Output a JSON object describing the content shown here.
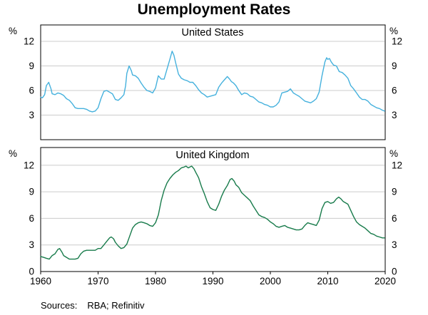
{
  "title": "Unemployment Rates",
  "footer": {
    "sources_label": "Sources:",
    "sources_text": "RBA; Refinitiv"
  },
  "chart_data": [
    {
      "type": "line",
      "panel_title": "United States",
      "unit": "%",
      "color": "#45b1dd",
      "grid": true,
      "x_range": [
        1960,
        2020
      ],
      "y_range": [
        0,
        14
      ],
      "y_ticks": [
        3,
        6,
        9,
        12
      ],
      "x_ticks": [
        1960,
        1970,
        1980,
        1990,
        2000,
        2010,
        2020
      ],
      "x_labels_visible": false,
      "series": [
        {
          "name": "United States unemployment rate (%)",
          "points": [
            [
              1960.0,
              5.2
            ],
            [
              1960.3,
              5.1
            ],
            [
              1960.7,
              5.5
            ],
            [
              1961.0,
              6.6
            ],
            [
              1961.4,
              7.0
            ],
            [
              1961.8,
              6.2
            ],
            [
              1962.0,
              5.6
            ],
            [
              1962.5,
              5.5
            ],
            [
              1963.0,
              5.7
            ],
            [
              1963.5,
              5.6
            ],
            [
              1964.0,
              5.4
            ],
            [
              1964.5,
              5.0
            ],
            [
              1965.0,
              4.8
            ],
            [
              1965.5,
              4.4
            ],
            [
              1966.0,
              3.9
            ],
            [
              1966.5,
              3.8
            ],
            [
              1967.0,
              3.8
            ],
            [
              1967.5,
              3.8
            ],
            [
              1968.0,
              3.7
            ],
            [
              1968.5,
              3.5
            ],
            [
              1969.0,
              3.4
            ],
            [
              1969.5,
              3.5
            ],
            [
              1970.0,
              3.9
            ],
            [
              1970.5,
              5.0
            ],
            [
              1971.0,
              5.9
            ],
            [
              1971.5,
              6.0
            ],
            [
              1972.0,
              5.8
            ],
            [
              1972.5,
              5.6
            ],
            [
              1973.0,
              4.9
            ],
            [
              1973.5,
              4.8
            ],
            [
              1974.0,
              5.1
            ],
            [
              1974.5,
              5.5
            ],
            [
              1974.8,
              6.6
            ],
            [
              1975.0,
              8.1
            ],
            [
              1975.4,
              9.0
            ],
            [
              1975.8,
              8.4
            ],
            [
              1976.0,
              7.9
            ],
            [
              1976.5,
              7.8
            ],
            [
              1977.0,
              7.5
            ],
            [
              1977.5,
              6.9
            ],
            [
              1978.0,
              6.4
            ],
            [
              1978.5,
              6.0
            ],
            [
              1979.0,
              5.9
            ],
            [
              1979.5,
              5.7
            ],
            [
              1980.0,
              6.3
            ],
            [
              1980.5,
              7.8
            ],
            [
              1981.0,
              7.4
            ],
            [
              1981.5,
              7.4
            ],
            [
              1982.0,
              8.6
            ],
            [
              1982.5,
              9.8
            ],
            [
              1982.9,
              10.8
            ],
            [
              1983.2,
              10.3
            ],
            [
              1983.5,
              9.4
            ],
            [
              1984.0,
              8.0
            ],
            [
              1984.5,
              7.5
            ],
            [
              1985.0,
              7.3
            ],
            [
              1985.5,
              7.2
            ],
            [
              1986.0,
              7.0
            ],
            [
              1986.5,
              7.0
            ],
            [
              1987.0,
              6.6
            ],
            [
              1987.5,
              6.1
            ],
            [
              1988.0,
              5.7
            ],
            [
              1988.5,
              5.5
            ],
            [
              1989.0,
              5.2
            ],
            [
              1989.5,
              5.3
            ],
            [
              1990.0,
              5.4
            ],
            [
              1990.5,
              5.5
            ],
            [
              1991.0,
              6.4
            ],
            [
              1991.5,
              6.9
            ],
            [
              1992.0,
              7.3
            ],
            [
              1992.5,
              7.7
            ],
            [
              1992.9,
              7.4
            ],
            [
              1993.2,
              7.1
            ],
            [
              1993.6,
              6.9
            ],
            [
              1994.0,
              6.6
            ],
            [
              1994.5,
              6.0
            ],
            [
              1995.0,
              5.5
            ],
            [
              1995.5,
              5.7
            ],
            [
              1996.0,
              5.6
            ],
            [
              1996.5,
              5.3
            ],
            [
              1997.0,
              5.2
            ],
            [
              1997.5,
              4.9
            ],
            [
              1998.0,
              4.6
            ],
            [
              1998.5,
              4.5
            ],
            [
              1999.0,
              4.3
            ],
            [
              1999.5,
              4.2
            ],
            [
              2000.0,
              4.0
            ],
            [
              2000.5,
              4.0
            ],
            [
              2001.0,
              4.2
            ],
            [
              2001.5,
              4.6
            ],
            [
              2002.0,
              5.7
            ],
            [
              2002.5,
              5.8
            ],
            [
              2003.0,
              5.9
            ],
            [
              2003.5,
              6.2
            ],
            [
              2004.0,
              5.7
            ],
            [
              2004.5,
              5.5
            ],
            [
              2005.0,
              5.3
            ],
            [
              2005.5,
              5.0
            ],
            [
              2006.0,
              4.7
            ],
            [
              2006.5,
              4.6
            ],
            [
              2007.0,
              4.5
            ],
            [
              2007.5,
              4.7
            ],
            [
              2008.0,
              5.0
            ],
            [
              2008.5,
              5.8
            ],
            [
              2009.0,
              7.8
            ],
            [
              2009.5,
              9.5
            ],
            [
              2009.8,
              10.0
            ],
            [
              2010.0,
              9.8
            ],
            [
              2010.3,
              9.9
            ],
            [
              2010.6,
              9.5
            ],
            [
              2011.0,
              9.1
            ],
            [
              2011.5,
              9.0
            ],
            [
              2012.0,
              8.3
            ],
            [
              2012.5,
              8.2
            ],
            [
              2013.0,
              7.9
            ],
            [
              2013.5,
              7.5
            ],
            [
              2014.0,
              6.6
            ],
            [
              2014.5,
              6.2
            ],
            [
              2015.0,
              5.7
            ],
            [
              2015.5,
              5.2
            ],
            [
              2016.0,
              4.9
            ],
            [
              2016.5,
              4.9
            ],
            [
              2017.0,
              4.7
            ],
            [
              2017.5,
              4.3
            ],
            [
              2018.0,
              4.1
            ],
            [
              2018.5,
              3.9
            ],
            [
              2019.0,
              3.8
            ],
            [
              2019.5,
              3.6
            ],
            [
              2019.9,
              3.5
            ]
          ]
        }
      ]
    },
    {
      "type": "line",
      "panel_title": "United Kingdom",
      "unit": "%",
      "color": "#187b4b",
      "grid": true,
      "x_range": [
        1960,
        2020
      ],
      "y_range": [
        0,
        14
      ],
      "y_ticks": [
        0,
        3,
        6,
        9,
        12
      ],
      "x_ticks": [
        1960,
        1970,
        1980,
        1990,
        2000,
        2010,
        2020
      ],
      "x_labels_visible": true,
      "series": [
        {
          "name": "United Kingdom unemployment rate (%)",
          "points": [
            [
              1960.0,
              1.7
            ],
            [
              1960.5,
              1.6
            ],
            [
              1961.0,
              1.5
            ],
            [
              1961.5,
              1.4
            ],
            [
              1962.0,
              1.8
            ],
            [
              1962.5,
              2.0
            ],
            [
              1963.0,
              2.5
            ],
            [
              1963.3,
              2.6
            ],
            [
              1963.7,
              2.2
            ],
            [
              1964.0,
              1.8
            ],
            [
              1964.5,
              1.6
            ],
            [
              1965.0,
              1.4
            ],
            [
              1965.5,
              1.4
            ],
            [
              1966.0,
              1.4
            ],
            [
              1966.5,
              1.5
            ],
            [
              1967.0,
              2.0
            ],
            [
              1967.5,
              2.3
            ],
            [
              1968.0,
              2.4
            ],
            [
              1968.5,
              2.4
            ],
            [
              1969.0,
              2.4
            ],
            [
              1969.5,
              2.4
            ],
            [
              1970.0,
              2.6
            ],
            [
              1970.5,
              2.6
            ],
            [
              1971.0,
              3.0
            ],
            [
              1971.5,
              3.4
            ],
            [
              1972.0,
              3.8
            ],
            [
              1972.3,
              3.9
            ],
            [
              1972.7,
              3.7
            ],
            [
              1973.0,
              3.3
            ],
            [
              1973.5,
              2.9
            ],
            [
              1974.0,
              2.6
            ],
            [
              1974.5,
              2.7
            ],
            [
              1975.0,
              3.1
            ],
            [
              1975.5,
              4.0
            ],
            [
              1976.0,
              4.9
            ],
            [
              1976.5,
              5.3
            ],
            [
              1977.0,
              5.5
            ],
            [
              1977.5,
              5.6
            ],
            [
              1978.0,
              5.5
            ],
            [
              1978.5,
              5.4
            ],
            [
              1979.0,
              5.2
            ],
            [
              1979.5,
              5.1
            ],
            [
              1980.0,
              5.5
            ],
            [
              1980.5,
              6.4
            ],
            [
              1981.0,
              8.0
            ],
            [
              1981.5,
              9.2
            ],
            [
              1982.0,
              10.0
            ],
            [
              1982.5,
              10.5
            ],
            [
              1983.0,
              10.9
            ],
            [
              1983.5,
              11.2
            ],
            [
              1984.0,
              11.4
            ],
            [
              1984.5,
              11.7
            ],
            [
              1985.0,
              11.8
            ],
            [
              1985.3,
              11.9
            ],
            [
              1985.7,
              11.7
            ],
            [
              1986.0,
              11.8
            ],
            [
              1986.3,
              11.9
            ],
            [
              1986.7,
              11.6
            ],
            [
              1987.0,
              11.2
            ],
            [
              1987.5,
              10.6
            ],
            [
              1988.0,
              9.6
            ],
            [
              1988.5,
              8.8
            ],
            [
              1989.0,
              7.9
            ],
            [
              1989.5,
              7.2
            ],
            [
              1990.0,
              7.0
            ],
            [
              1990.5,
              6.9
            ],
            [
              1991.0,
              7.6
            ],
            [
              1991.5,
              8.5
            ],
            [
              1992.0,
              9.2
            ],
            [
              1992.5,
              9.7
            ],
            [
              1993.0,
              10.4
            ],
            [
              1993.3,
              10.5
            ],
            [
              1993.7,
              10.2
            ],
            [
              1994.0,
              9.8
            ],
            [
              1994.5,
              9.5
            ],
            [
              1995.0,
              8.9
            ],
            [
              1995.5,
              8.6
            ],
            [
              1996.0,
              8.3
            ],
            [
              1996.5,
              8.0
            ],
            [
              1997.0,
              7.4
            ],
            [
              1997.5,
              6.9
            ],
            [
              1998.0,
              6.4
            ],
            [
              1998.5,
              6.2
            ],
            [
              1999.0,
              6.1
            ],
            [
              1999.5,
              5.9
            ],
            [
              2000.0,
              5.6
            ],
            [
              2000.5,
              5.4
            ],
            [
              2001.0,
              5.1
            ],
            [
              2001.5,
              5.0
            ],
            [
              2002.0,
              5.1
            ],
            [
              2002.5,
              5.2
            ],
            [
              2003.0,
              5.0
            ],
            [
              2003.5,
              4.9
            ],
            [
              2004.0,
              4.8
            ],
            [
              2004.5,
              4.7
            ],
            [
              2005.0,
              4.7
            ],
            [
              2005.5,
              4.8
            ],
            [
              2006.0,
              5.2
            ],
            [
              2006.5,
              5.5
            ],
            [
              2007.0,
              5.4
            ],
            [
              2007.5,
              5.3
            ],
            [
              2008.0,
              5.2
            ],
            [
              2008.5,
              5.8
            ],
            [
              2009.0,
              7.1
            ],
            [
              2009.5,
              7.8
            ],
            [
              2010.0,
              7.9
            ],
            [
              2010.5,
              7.7
            ],
            [
              2011.0,
              7.8
            ],
            [
              2011.5,
              8.2
            ],
            [
              2011.9,
              8.4
            ],
            [
              2012.3,
              8.2
            ],
            [
              2012.7,
              7.9
            ],
            [
              2013.0,
              7.8
            ],
            [
              2013.5,
              7.6
            ],
            [
              2014.0,
              6.9
            ],
            [
              2014.5,
              6.2
            ],
            [
              2015.0,
              5.6
            ],
            [
              2015.5,
              5.3
            ],
            [
              2016.0,
              5.1
            ],
            [
              2016.5,
              4.9
            ],
            [
              2017.0,
              4.6
            ],
            [
              2017.5,
              4.3
            ],
            [
              2018.0,
              4.2
            ],
            [
              2018.5,
              4.0
            ],
            [
              2019.0,
              3.9
            ],
            [
              2019.5,
              3.8
            ],
            [
              2019.9,
              3.8
            ]
          ]
        }
      ]
    }
  ]
}
